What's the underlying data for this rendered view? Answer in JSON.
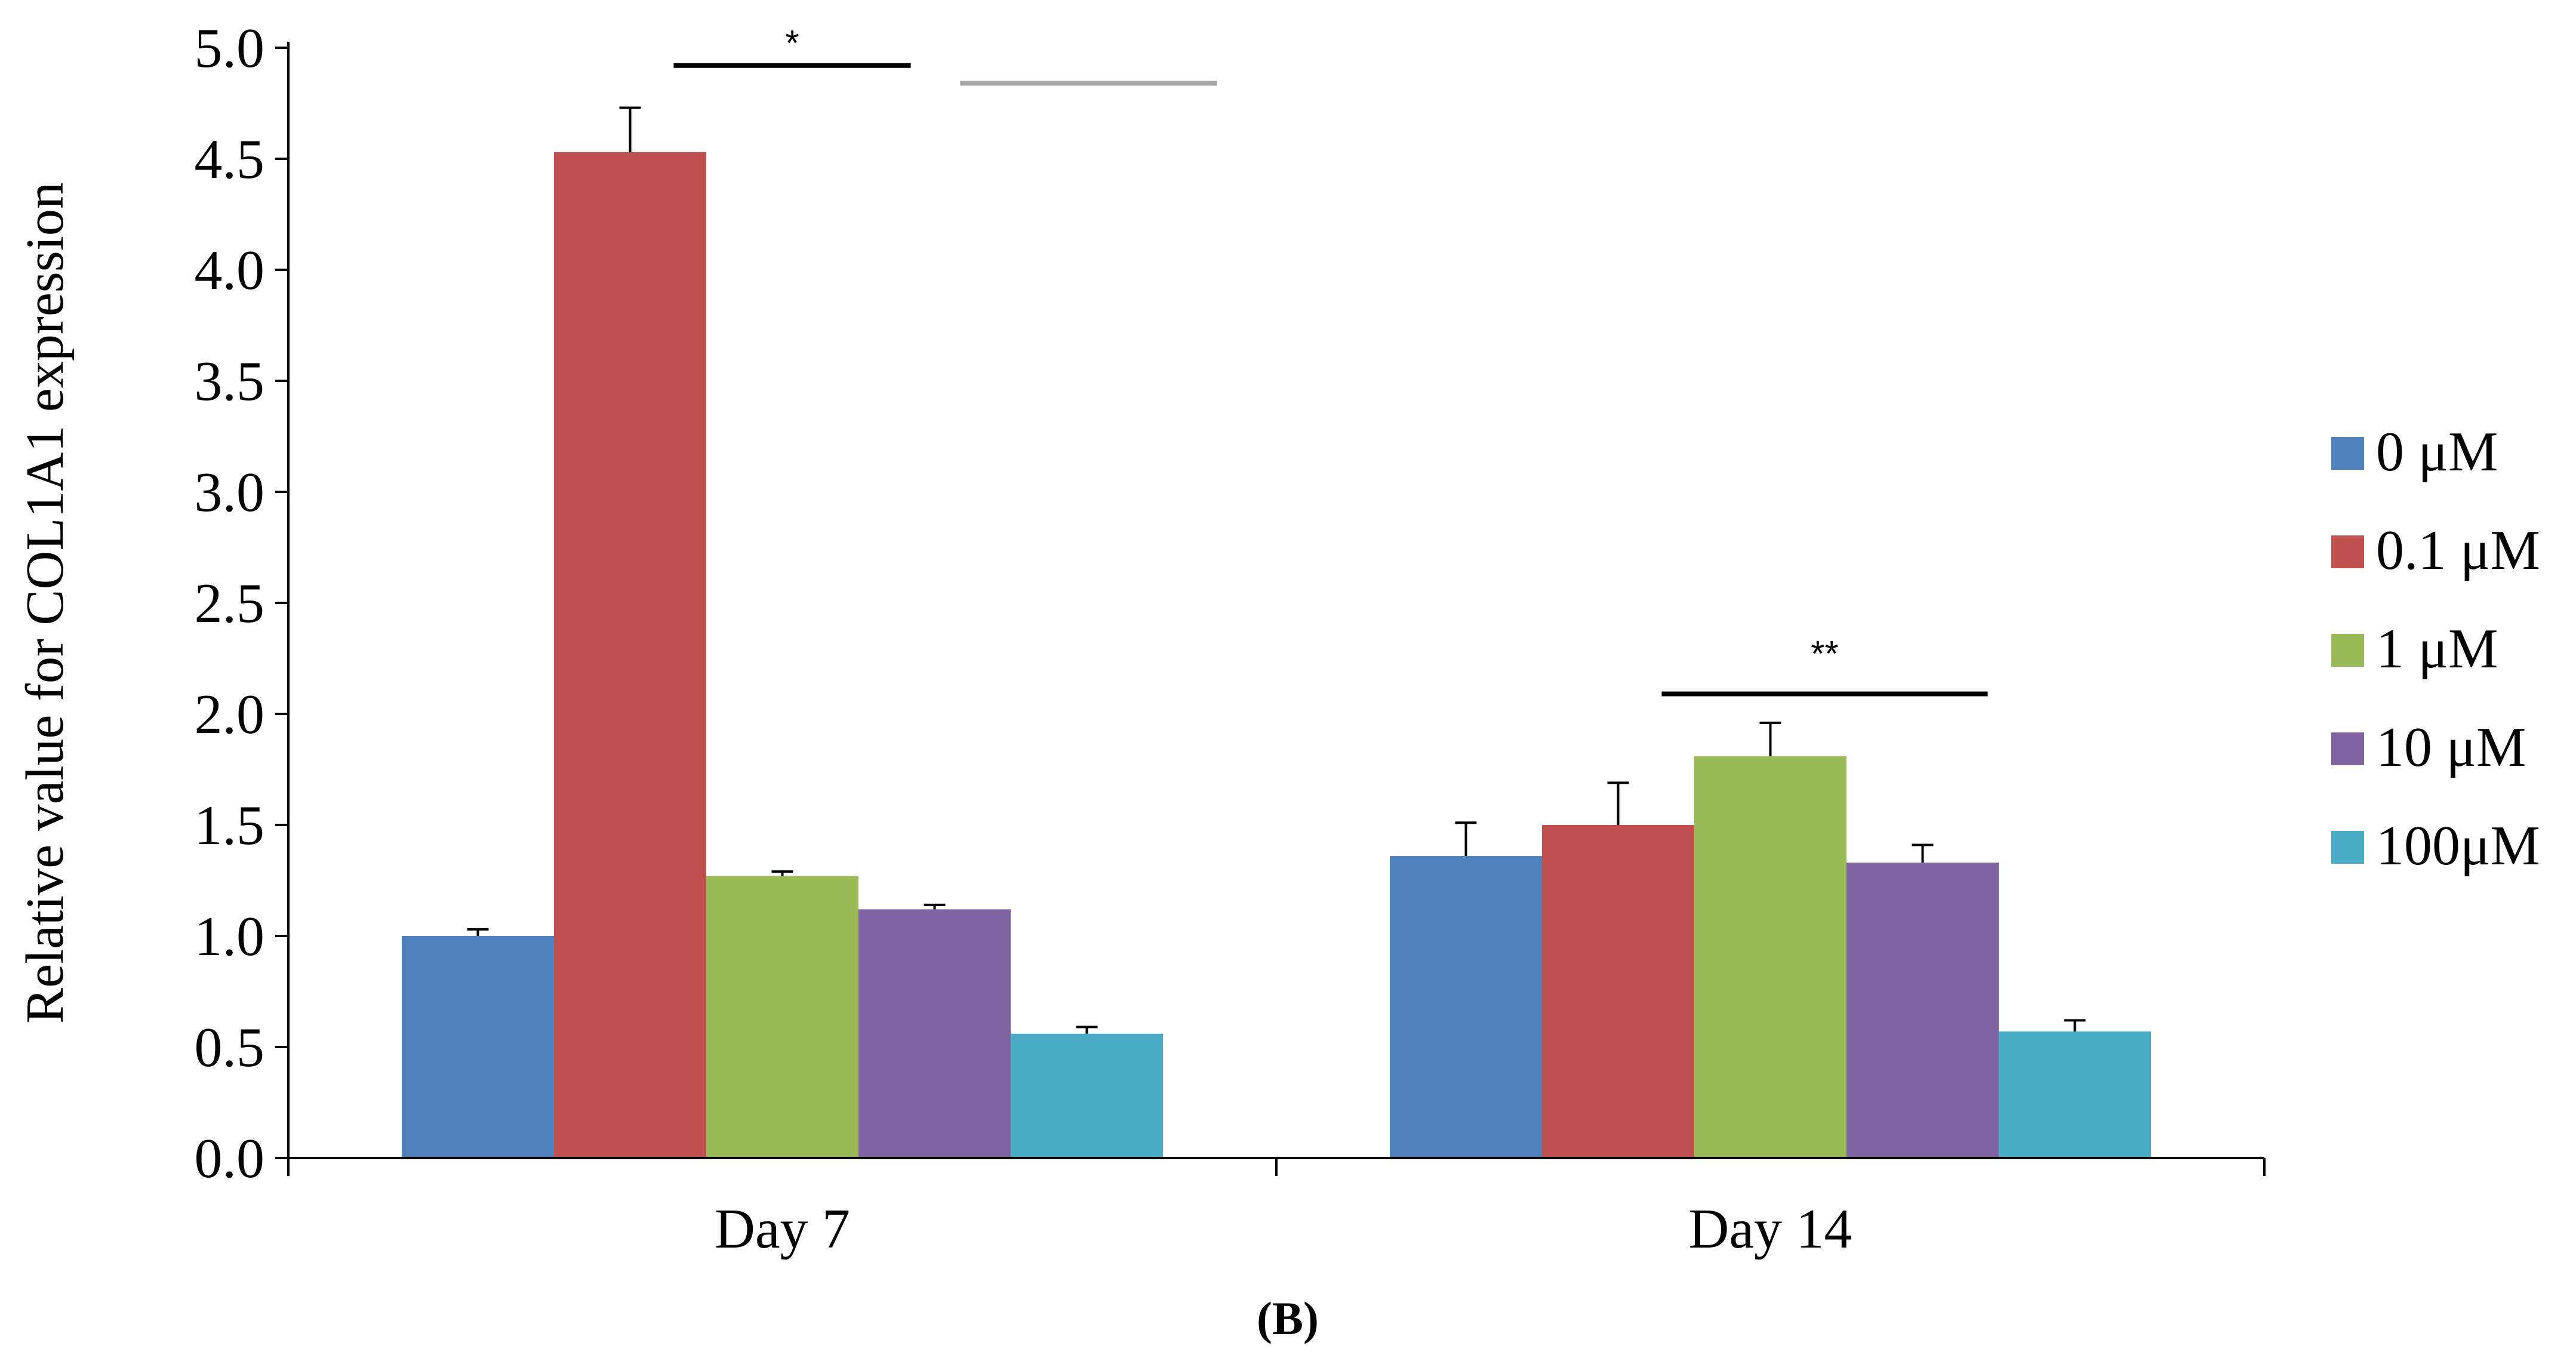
{
  "chart_data": {
    "type": "bar",
    "title": "",
    "xlabel": "",
    "ylabel": "Relative value for COL1A1 expression",
    "ylim": [
      0,
      5.0
    ],
    "yticks": [
      "0.0",
      "0.5",
      "1.0",
      "1.5",
      "2.0",
      "2.5",
      "3.0",
      "3.5",
      "4.0",
      "4.5",
      "5.0"
    ],
    "categories": [
      "Day 7",
      "Day 14"
    ],
    "series": [
      {
        "name": "0 μM",
        "color": "#4F81BD",
        "values": [
          1.0,
          1.36
        ],
        "errors": [
          0.03,
          0.15
        ]
      },
      {
        "name": "0.1 μM",
        "color": "#C0504D",
        "values": [
          4.53,
          1.5
        ],
        "errors": [
          0.2,
          0.19
        ]
      },
      {
        "name": "1 μM",
        "color": "#9BBB59",
        "values": [
          1.27,
          1.81
        ],
        "errors": [
          0.02,
          0.15
        ]
      },
      {
        "name": "10 μM",
        "color": "#8064A2",
        "values": [
          1.12,
          1.33
        ],
        "errors": [
          0.02,
          0.08
        ]
      },
      {
        "name": "100μM",
        "color": "#4BACC6",
        "values": [
          0.56,
          0.57
        ],
        "errors": [
          0.03,
          0.05
        ]
      }
    ],
    "legend_position": "right",
    "significance": [
      {
        "label": "*",
        "y_line": 4.92,
        "label_y": 5.02,
        "x_from": 0.39,
        "x_to": 0.63,
        "color": "#000000"
      },
      {
        "label": "",
        "y_line": 4.84,
        "label_y": 0,
        "x_from": 0.68,
        "x_to": 0.94,
        "color": "#A6A6A6"
      },
      {
        "label": "**",
        "y_line": 2.09,
        "label_y": 2.27,
        "x_from": 1.39,
        "x_to": 1.72,
        "color": "#000000"
      }
    ],
    "caption": "(B)"
  }
}
